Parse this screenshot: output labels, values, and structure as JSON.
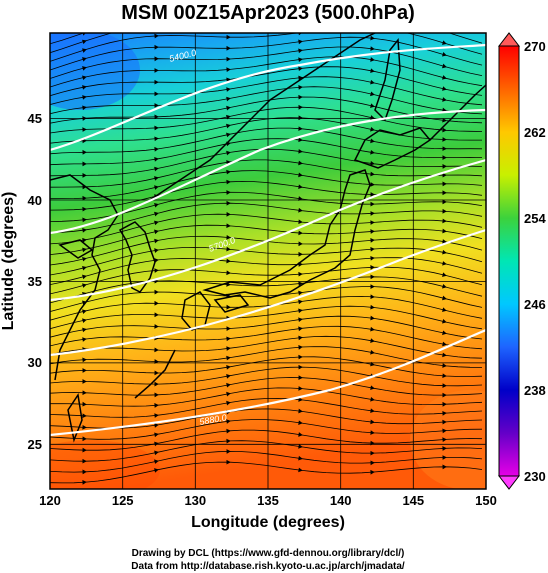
{
  "title": "MSM 00Z15Apr2023 (500.0hPa)",
  "xlabel": "Longitude (degrees)",
  "ylabel": "Latitude  (degrees)",
  "x_ticks": [
    "120",
    "125",
    "130",
    "135",
    "140",
    "145",
    "150"
  ],
  "y_ticks": [
    "25",
    "30",
    "35",
    "40",
    "45"
  ],
  "colorbar": {
    "ticks": [
      "270",
      "262",
      "254",
      "246",
      "238",
      "230"
    ],
    "min": 230,
    "max": 270
  },
  "contour_labels": [
    "5400.0",
    "5700.0",
    "5880.0"
  ],
  "credits": {
    "line1": "Drawing by DCL (https://www.gfd-dennou.org/library/dcl/)",
    "line2": "Data from http://database.rish.kyoto-u.ac.jp/arch/jmadata/"
  },
  "map": {
    "lon_range": [
      120,
      150
    ],
    "lat_range": [
      22.5,
      48
    ]
  },
  "colors": {
    "north": "#1e8cff",
    "mid": "#3cd23c",
    "south": "#ff6400"
  }
}
